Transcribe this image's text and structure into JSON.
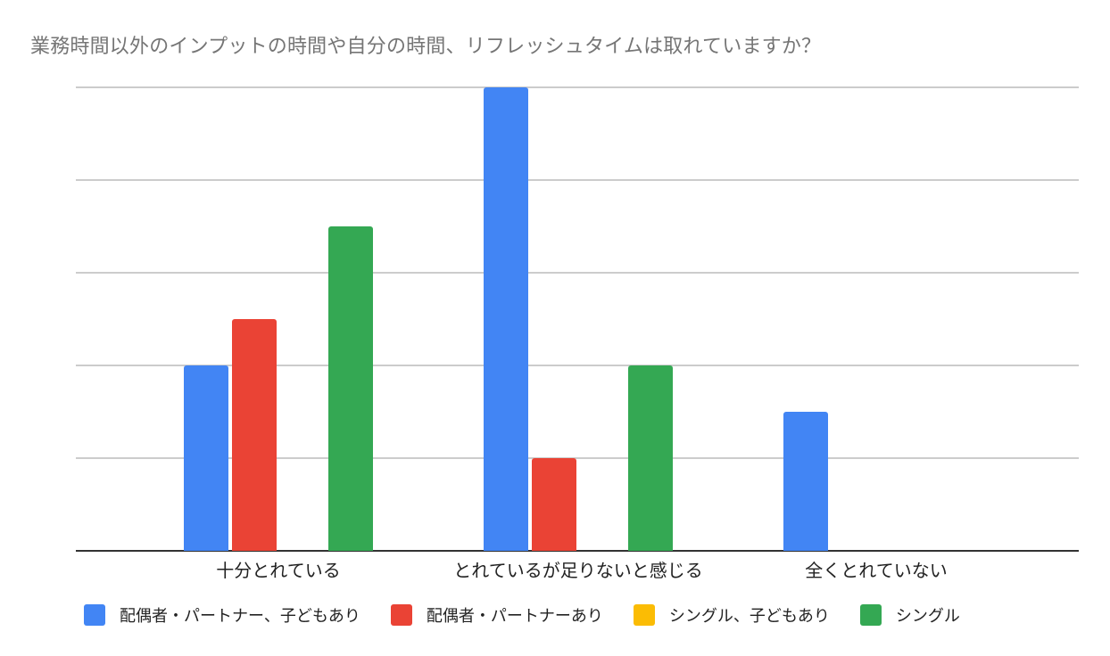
{
  "chart_data": {
    "type": "bar",
    "title": "業務時間以外のインプットの時間や自分の時間、リフレッシュタイムは取れていますか？",
    "xlabel": "",
    "ylabel": "",
    "categories": [
      "十分とれている",
      "とれているが足りないと感じる",
      "全くとれていない"
    ],
    "series": [
      {
        "name": "配偶者・パートナー、子どもあり",
        "color": "#4285f4",
        "values": [
          2,
          5,
          1.5
        ]
      },
      {
        "name": "配偶者・パートナーあり",
        "color": "#ea4335",
        "values": [
          2.5,
          1,
          0
        ]
      },
      {
        "name": "シングル、子どもあり",
        "color": "#fbbc04",
        "values": [
          0,
          0,
          0
        ]
      },
      {
        "name": "シングル",
        "color": "#34a853",
        "values": [
          3.5,
          2,
          0
        ]
      }
    ],
    "ylim": [
      0,
      5
    ],
    "y_gridlines": [
      0,
      1,
      2,
      3,
      4,
      5
    ],
    "y_tick_labels_visible": false,
    "grid": true,
    "legend_position": "bottom"
  },
  "legend": [
    {
      "label": "配偶者・パートナー、子どもあり",
      "color": "#4285f4"
    },
    {
      "label": "配偶者・パートナーあり",
      "color": "#ea4335"
    },
    {
      "label": "シングル、子どもあり",
      "color": "#fbbc04"
    },
    {
      "label": "シングル",
      "color": "#34a853"
    }
  ]
}
